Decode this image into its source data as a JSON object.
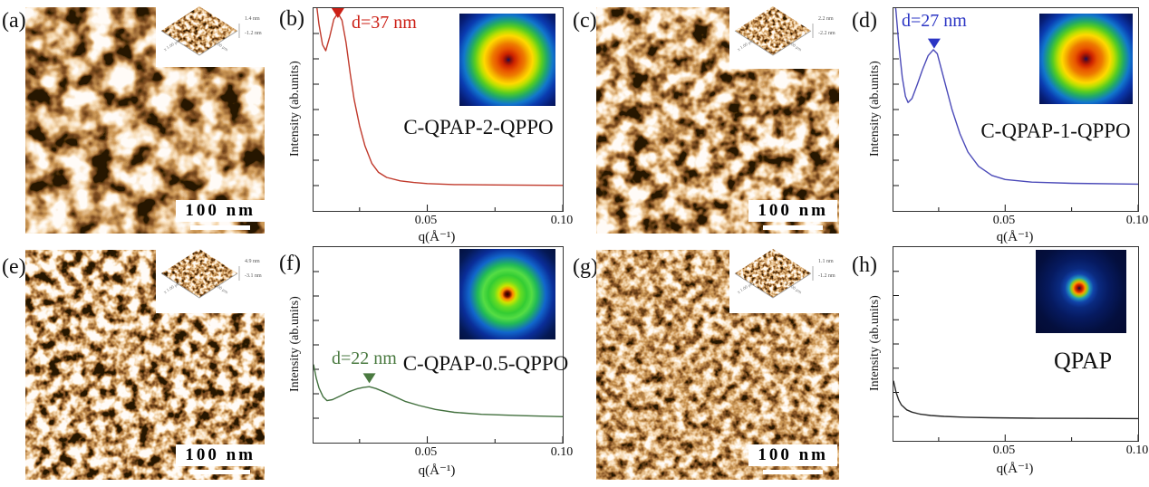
{
  "figure": {
    "afm_panels": [
      {
        "label": "(a)",
        "scalebar": "100 nm",
        "inset": {
          "zmax": "1.4 nm",
          "zmin": "-1.2 nm",
          "xaxis": "x 1.00 μm",
          "yaxis": "x 1.00 μm"
        }
      },
      {
        "label": "(c)",
        "scalebar": "100 nm",
        "inset": {
          "zmax": "2.2 nm",
          "zmin": "-2.2 nm",
          "xaxis": "x 1.00 μm",
          "yaxis": "x 1.00 μm"
        }
      },
      {
        "label": "(e)",
        "scalebar": "100 nm",
        "inset": {
          "zmax": "4.9 nm",
          "zmin": "-3.1 nm",
          "xaxis": "x 1.00 μm",
          "yaxis": "x 1.00 μm"
        }
      },
      {
        "label": "(g)",
        "scalebar": "100 nm",
        "inset": {
          "zmax": "1.1 nm",
          "zmin": "-1.2 nm",
          "xaxis": "x 1.00 μm",
          "yaxis": "x 1.00 μm"
        }
      }
    ]
  },
  "chart_data": [
    {
      "type": "line",
      "panel_label": "(b)",
      "sample": "C-QPAP-2-QPPO",
      "curve_color": "#c0392b",
      "annotation_color": "#cc1f15",
      "xlabel": "q(Å⁻¹)",
      "ylabel": "Intensity (ab.units)",
      "xlim": [
        0.008,
        0.1
      ],
      "ylim": [
        0,
        1
      ],
      "grid": false,
      "legend": "none",
      "xticks": [
        0.025,
        0.05,
        0.075,
        0.1
      ],
      "xtick_major": [
        0.05,
        0.1
      ],
      "xtick_labels": [
        "0.05",
        "0.10"
      ],
      "peak": {
        "text": "d=37 nm",
        "q": 0.017,
        "d_nm": 37
      },
      "layout": {
        "marker_y": 0.0
      },
      "points": [
        [
          0.008,
          1.1
        ],
        [
          0.009,
          1.03
        ],
        [
          0.01,
          0.92
        ],
        [
          0.0113,
          0.82
        ],
        [
          0.0125,
          0.79
        ],
        [
          0.014,
          0.86
        ],
        [
          0.0155,
          0.945
        ],
        [
          0.017,
          0.975
        ],
        [
          0.0185,
          0.94
        ],
        [
          0.02,
          0.83
        ],
        [
          0.0215,
          0.68
        ],
        [
          0.023,
          0.55
        ],
        [
          0.025,
          0.42
        ],
        [
          0.027,
          0.32
        ],
        [
          0.0295,
          0.235
        ],
        [
          0.032,
          0.19
        ],
        [
          0.035,
          0.165
        ],
        [
          0.04,
          0.148
        ],
        [
          0.045,
          0.14
        ],
        [
          0.05,
          0.135
        ],
        [
          0.06,
          0.13
        ],
        [
          0.075,
          0.128
        ],
        [
          0.1,
          0.126
        ]
      ]
    },
    {
      "type": "line",
      "panel_label": "(d)",
      "sample": "C-QPAP-1-QPPO",
      "curve_color": "#4a49b8",
      "annotation_color": "#2b35c4",
      "xlabel": "q(Å⁻¹)",
      "ylabel": "Intensity (ab.units)",
      "xlim": [
        0.008,
        0.1
      ],
      "ylim": [
        0,
        1
      ],
      "grid": false,
      "legend": "none",
      "xticks": [
        0.025,
        0.05,
        0.075,
        0.1
      ],
      "xtick_major": [
        0.05,
        0.1
      ],
      "xtick_labels": [
        "0.05",
        "0.10"
      ],
      "peak": {
        "text": "d=27 nm",
        "q": 0.0233,
        "d_nm": 27
      },
      "layout": {
        "marker_y": 0.15
      },
      "points": [
        [
          0.008,
          1.1
        ],
        [
          0.009,
          0.98
        ],
        [
          0.01,
          0.82
        ],
        [
          0.0113,
          0.66
        ],
        [
          0.0125,
          0.565
        ],
        [
          0.0135,
          0.535
        ],
        [
          0.015,
          0.555
        ],
        [
          0.017,
          0.625
        ],
        [
          0.019,
          0.7
        ],
        [
          0.021,
          0.765
        ],
        [
          0.023,
          0.795
        ],
        [
          0.0245,
          0.775
        ],
        [
          0.026,
          0.7
        ],
        [
          0.028,
          0.6
        ],
        [
          0.03,
          0.5
        ],
        [
          0.033,
          0.38
        ],
        [
          0.036,
          0.29
        ],
        [
          0.04,
          0.22
        ],
        [
          0.045,
          0.175
        ],
        [
          0.05,
          0.155
        ],
        [
          0.06,
          0.142
        ],
        [
          0.075,
          0.136
        ],
        [
          0.1,
          0.132
        ]
      ]
    },
    {
      "type": "line",
      "panel_label": "(f)",
      "sample": "C-QPAP-0.5-QPPO",
      "curve_color": "#42703e",
      "annotation_color": "#4a7a40",
      "xlabel": "q(Å⁻¹)",
      "ylabel": "Intensity (ab.units)",
      "xlim": [
        0.008,
        0.1
      ],
      "ylim": [
        0,
        1
      ],
      "grid": false,
      "legend": "none",
      "xticks": [
        0.025,
        0.05,
        0.075,
        0.1
      ],
      "xtick_major": [
        0.05,
        0.1
      ],
      "xtick_labels": [
        "0.05",
        "0.10"
      ],
      "peak": {
        "text": "d=22 nm",
        "q": 0.0286,
        "d_nm": 22
      },
      "layout": {
        "marker_y": 0.645
      },
      "points": [
        [
          0.008,
          0.4
        ],
        [
          0.009,
          0.33
        ],
        [
          0.01,
          0.28
        ],
        [
          0.0115,
          0.235
        ],
        [
          0.013,
          0.215
        ],
        [
          0.015,
          0.22
        ],
        [
          0.018,
          0.24
        ],
        [
          0.021,
          0.26
        ],
        [
          0.024,
          0.275
        ],
        [
          0.0265,
          0.283
        ],
        [
          0.0286,
          0.286
        ],
        [
          0.031,
          0.277
        ],
        [
          0.034,
          0.26
        ],
        [
          0.038,
          0.235
        ],
        [
          0.042,
          0.21
        ],
        [
          0.047,
          0.19
        ],
        [
          0.053,
          0.17
        ],
        [
          0.06,
          0.155
        ],
        [
          0.07,
          0.145
        ],
        [
          0.085,
          0.138
        ],
        [
          0.1,
          0.133
        ]
      ]
    },
    {
      "type": "line",
      "panel_label": "(h)",
      "sample": "QPAP",
      "curve_color": "#2a2a2a",
      "annotation_color": "#2a2a2a",
      "xlabel": "q(Å⁻¹)",
      "ylabel": "Intensity (ab.units)",
      "xlim": [
        0.008,
        0.1
      ],
      "ylim": [
        0,
        1
      ],
      "grid": false,
      "legend": "none",
      "xticks": [
        0.025,
        0.05,
        0.075,
        0.1
      ],
      "xtick_major": [
        0.05,
        0.1
      ],
      "xtick_labels": [
        "0.05",
        "0.10"
      ],
      "peak": null,
      "layout": {},
      "points": [
        [
          0.008,
          0.31
        ],
        [
          0.009,
          0.25
        ],
        [
          0.01,
          0.21
        ],
        [
          0.011,
          0.185
        ],
        [
          0.013,
          0.16
        ],
        [
          0.015,
          0.148
        ],
        [
          0.018,
          0.138
        ],
        [
          0.022,
          0.131
        ],
        [
          0.027,
          0.126
        ],
        [
          0.035,
          0.122
        ],
        [
          0.045,
          0.119
        ],
        [
          0.06,
          0.117
        ],
        [
          0.08,
          0.116
        ],
        [
          0.1,
          0.115
        ]
      ]
    }
  ]
}
